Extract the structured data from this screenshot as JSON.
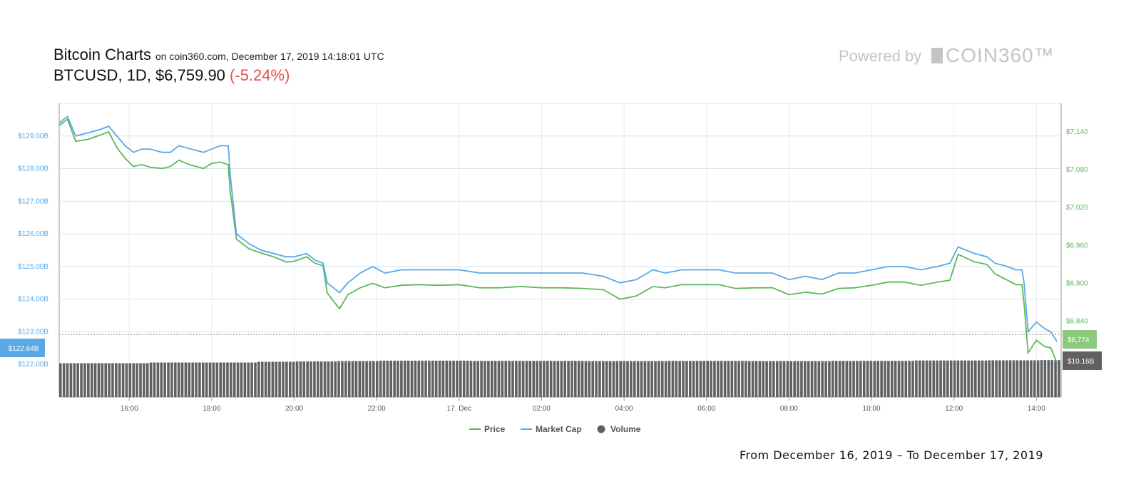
{
  "header": {
    "title": "Bitcoin Charts",
    "subtitle": "on coin360.com, December 17, 2019 14:18:01 UTC",
    "pair": "BTCUSD",
    "interval": "1D",
    "price": "$6,759.90",
    "change": "(-5.24%)"
  },
  "branding": {
    "powered_by": "Powered by",
    "logo_text": "COIN360™"
  },
  "footer": {
    "range_text": "From December 16, 2019 – To December 17, 2019"
  },
  "colors": {
    "price": "#5cb85c",
    "market_cap": "#5aa8e6",
    "volume": "#616161",
    "change_negative": "#e0504c"
  },
  "chart_data": {
    "type": "line",
    "x_ticks": [
      "16:00",
      "18:00",
      "20:00",
      "22:00",
      "17. Dec",
      "02:00",
      "04:00",
      "06:00",
      "08:00",
      "10:00",
      "12:00",
      "14:00"
    ],
    "x_range_hours": [
      14.3,
      38.6
    ],
    "y_left": {
      "label": "Market Cap",
      "ticks": [
        "$122.00B",
        "$123.00B",
        "$124.00B",
        "$125.00B",
        "$126.00B",
        "$127.00B",
        "$128.00B",
        "$129.00B"
      ],
      "range": [
        121.0,
        130.0
      ]
    },
    "y_right": {
      "label": "Price",
      "ticks": [
        "$6,774",
        "$6,840",
        "$6,900",
        "$6,960",
        "$7,020",
        "$7,080",
        "$7,140"
      ],
      "range": [
        6720,
        7185
      ]
    },
    "current_tags": {
      "market_cap": "$122.64B",
      "price": "$6,774",
      "volume": "$10.16B"
    },
    "legend": [
      "Price",
      "Market Cap",
      "Volume"
    ],
    "series": [
      {
        "name": "Market Cap",
        "points": [
          [
            14.3,
            129.4
          ],
          [
            14.5,
            129.6
          ],
          [
            14.7,
            129.0
          ],
          [
            15.0,
            129.1
          ],
          [
            15.3,
            129.2
          ],
          [
            15.5,
            129.3
          ],
          [
            15.7,
            129.0
          ],
          [
            15.9,
            128.7
          ],
          [
            16.1,
            128.5
          ],
          [
            16.3,
            128.6
          ],
          [
            16.5,
            128.6
          ],
          [
            16.8,
            128.5
          ],
          [
            17.0,
            128.5
          ],
          [
            17.2,
            128.7
          ],
          [
            17.5,
            128.6
          ],
          [
            17.8,
            128.5
          ],
          [
            18.0,
            128.6
          ],
          [
            18.2,
            128.7
          ],
          [
            18.4,
            128.7
          ],
          [
            18.45,
            127.8
          ],
          [
            18.6,
            126.0
          ],
          [
            18.9,
            125.7
          ],
          [
            19.2,
            125.5
          ],
          [
            19.5,
            125.4
          ],
          [
            19.8,
            125.3
          ],
          [
            20.0,
            125.3
          ],
          [
            20.3,
            125.4
          ],
          [
            20.5,
            125.2
          ],
          [
            20.7,
            125.1
          ],
          [
            20.8,
            124.5
          ],
          [
            21.0,
            124.3
          ],
          [
            21.1,
            124.2
          ],
          [
            21.3,
            124.5
          ],
          [
            21.6,
            124.8
          ],
          [
            21.9,
            125.0
          ],
          [
            22.2,
            124.8
          ],
          [
            22.6,
            124.9
          ],
          [
            23.0,
            124.9
          ],
          [
            23.5,
            124.9
          ],
          [
            24.0,
            124.9
          ],
          [
            24.5,
            124.8
          ],
          [
            25.0,
            124.8
          ],
          [
            25.5,
            124.8
          ],
          [
            26.0,
            124.8
          ],
          [
            26.5,
            124.8
          ],
          [
            27.0,
            124.8
          ],
          [
            27.5,
            124.7
          ],
          [
            27.9,
            124.5
          ],
          [
            28.3,
            124.6
          ],
          [
            28.7,
            124.9
          ],
          [
            29.0,
            124.8
          ],
          [
            29.4,
            124.9
          ],
          [
            29.8,
            124.9
          ],
          [
            30.3,
            124.9
          ],
          [
            30.7,
            124.8
          ],
          [
            31.2,
            124.8
          ],
          [
            31.6,
            124.8
          ],
          [
            32.0,
            124.6
          ],
          [
            32.4,
            124.7
          ],
          [
            32.8,
            124.6
          ],
          [
            33.2,
            124.8
          ],
          [
            33.6,
            124.8
          ],
          [
            34.0,
            124.9
          ],
          [
            34.4,
            125.0
          ],
          [
            34.8,
            125.0
          ],
          [
            35.2,
            124.9
          ],
          [
            35.6,
            125.0
          ],
          [
            35.9,
            125.1
          ],
          [
            36.1,
            125.6
          ],
          [
            36.3,
            125.5
          ],
          [
            36.5,
            125.4
          ],
          [
            36.8,
            125.3
          ],
          [
            37.0,
            125.1
          ],
          [
            37.3,
            125.0
          ],
          [
            37.5,
            124.9
          ],
          [
            37.65,
            124.9
          ],
          [
            37.7,
            124.5
          ],
          [
            37.8,
            123.0
          ],
          [
            38.0,
            123.3
          ],
          [
            38.2,
            123.1
          ],
          [
            38.35,
            123.0
          ],
          [
            38.5,
            122.7
          ]
        ]
      },
      {
        "name": "Price",
        "points": [
          [
            14.3,
            7150
          ],
          [
            14.5,
            7160
          ],
          [
            14.7,
            7125
          ],
          [
            15.0,
            7128
          ],
          [
            15.3,
            7135
          ],
          [
            15.5,
            7140
          ],
          [
            15.7,
            7115
          ],
          [
            15.9,
            7098
          ],
          [
            16.1,
            7085
          ],
          [
            16.3,
            7088
          ],
          [
            16.5,
            7084
          ],
          [
            16.8,
            7082
          ],
          [
            17.0,
            7085
          ],
          [
            17.2,
            7095
          ],
          [
            17.5,
            7087
          ],
          [
            17.8,
            7082
          ],
          [
            18.0,
            7090
          ],
          [
            18.2,
            7092
          ],
          [
            18.4,
            7088
          ],
          [
            18.45,
            7045
          ],
          [
            18.6,
            6970
          ],
          [
            18.9,
            6955
          ],
          [
            19.2,
            6948
          ],
          [
            19.5,
            6942
          ],
          [
            19.8,
            6934
          ],
          [
            20.0,
            6935
          ],
          [
            20.3,
            6942
          ],
          [
            20.5,
            6932
          ],
          [
            20.7,
            6928
          ],
          [
            20.8,
            6885
          ],
          [
            21.0,
            6868
          ],
          [
            21.1,
            6860
          ],
          [
            21.3,
            6882
          ],
          [
            21.6,
            6893
          ],
          [
            21.9,
            6900
          ],
          [
            22.2,
            6893
          ],
          [
            22.6,
            6897
          ],
          [
            23.0,
            6898
          ],
          [
            23.5,
            6897
          ],
          [
            24.0,
            6898
          ],
          [
            24.5,
            6893
          ],
          [
            25.0,
            6893
          ],
          [
            25.5,
            6895
          ],
          [
            26.0,
            6893
          ],
          [
            26.5,
            6893
          ],
          [
            27.0,
            6892
          ],
          [
            27.5,
            6890
          ],
          [
            27.9,
            6875
          ],
          [
            28.3,
            6880
          ],
          [
            28.7,
            6895
          ],
          [
            29.0,
            6893
          ],
          [
            29.4,
            6898
          ],
          [
            29.8,
            6898
          ],
          [
            30.3,
            6898
          ],
          [
            30.7,
            6892
          ],
          [
            31.2,
            6893
          ],
          [
            31.6,
            6893
          ],
          [
            32.0,
            6882
          ],
          [
            32.4,
            6886
          ],
          [
            32.8,
            6883
          ],
          [
            33.2,
            6892
          ],
          [
            33.6,
            6893
          ],
          [
            34.0,
            6897
          ],
          [
            34.4,
            6902
          ],
          [
            34.8,
            6902
          ],
          [
            35.2,
            6897
          ],
          [
            35.6,
            6902
          ],
          [
            35.9,
            6905
          ],
          [
            36.1,
            6946
          ],
          [
            36.3,
            6940
          ],
          [
            36.5,
            6934
          ],
          [
            36.8,
            6930
          ],
          [
            37.0,
            6915
          ],
          [
            37.3,
            6905
          ],
          [
            37.5,
            6898
          ],
          [
            37.65,
            6898
          ],
          [
            37.7,
            6868
          ],
          [
            37.8,
            6790
          ],
          [
            38.0,
            6810
          ],
          [
            38.2,
            6800
          ],
          [
            38.35,
            6798
          ],
          [
            38.5,
            6774
          ]
        ]
      }
    ],
    "volume_billions": [
      [
        14.3,
        9.3
      ],
      [
        18.6,
        9.5
      ],
      [
        19.5,
        9.7
      ],
      [
        20.5,
        9.8
      ],
      [
        21.5,
        9.9
      ],
      [
        22.5,
        10.0
      ],
      [
        26.0,
        9.95
      ],
      [
        28.0,
        9.9
      ],
      [
        30.0,
        9.95
      ],
      [
        32.0,
        9.9
      ],
      [
        34.0,
        9.95
      ],
      [
        36.0,
        10.05
      ],
      [
        37.6,
        10.1
      ],
      [
        38.5,
        10.16
      ]
    ],
    "volume_range": [
      0,
      11
    ]
  }
}
